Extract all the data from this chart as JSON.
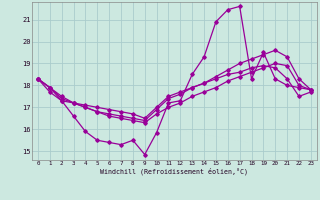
{
  "xlabel": "Windchill (Refroidissement éolien,°C)",
  "bg_color": "#cce8e0",
  "grid_color": "#aacccc",
  "line_color": "#990099",
  "x_ticks": [
    0,
    1,
    2,
    3,
    4,
    5,
    6,
    7,
    8,
    9,
    10,
    11,
    12,
    13,
    14,
    15,
    16,
    17,
    18,
    19,
    20,
    21,
    22,
    23
  ],
  "y_ticks": [
    15,
    16,
    17,
    18,
    19,
    20,
    21
  ],
  "ylim": [
    14.6,
    21.8
  ],
  "xlim": [
    -0.5,
    23.5
  ],
  "line1_y": [
    18.3,
    17.9,
    17.3,
    16.6,
    15.9,
    15.5,
    15.4,
    15.3,
    15.5,
    14.85,
    15.85,
    17.2,
    17.3,
    18.5,
    19.3,
    20.9,
    21.45,
    21.6,
    18.3,
    19.5,
    18.3,
    18.0,
    17.9,
    17.8
  ],
  "line2_y": [
    18.3,
    17.9,
    17.4,
    17.2,
    17.0,
    16.8,
    16.6,
    16.5,
    16.4,
    16.3,
    16.7,
    17.0,
    17.2,
    17.5,
    17.7,
    17.9,
    18.2,
    18.4,
    18.6,
    18.8,
    19.0,
    18.9,
    18.0,
    17.8
  ],
  "line3_y": [
    18.3,
    17.9,
    17.5,
    17.2,
    17.0,
    16.8,
    16.7,
    16.6,
    16.5,
    16.4,
    16.9,
    17.4,
    17.6,
    17.9,
    18.1,
    18.4,
    18.7,
    19.0,
    19.2,
    19.4,
    19.6,
    19.3,
    18.3,
    17.8
  ],
  "line4_y": [
    18.3,
    17.7,
    17.3,
    17.2,
    17.1,
    17.0,
    16.9,
    16.8,
    16.7,
    16.5,
    17.0,
    17.5,
    17.7,
    17.9,
    18.1,
    18.3,
    18.5,
    18.6,
    18.8,
    18.9,
    18.8,
    18.3,
    17.5,
    17.7
  ]
}
